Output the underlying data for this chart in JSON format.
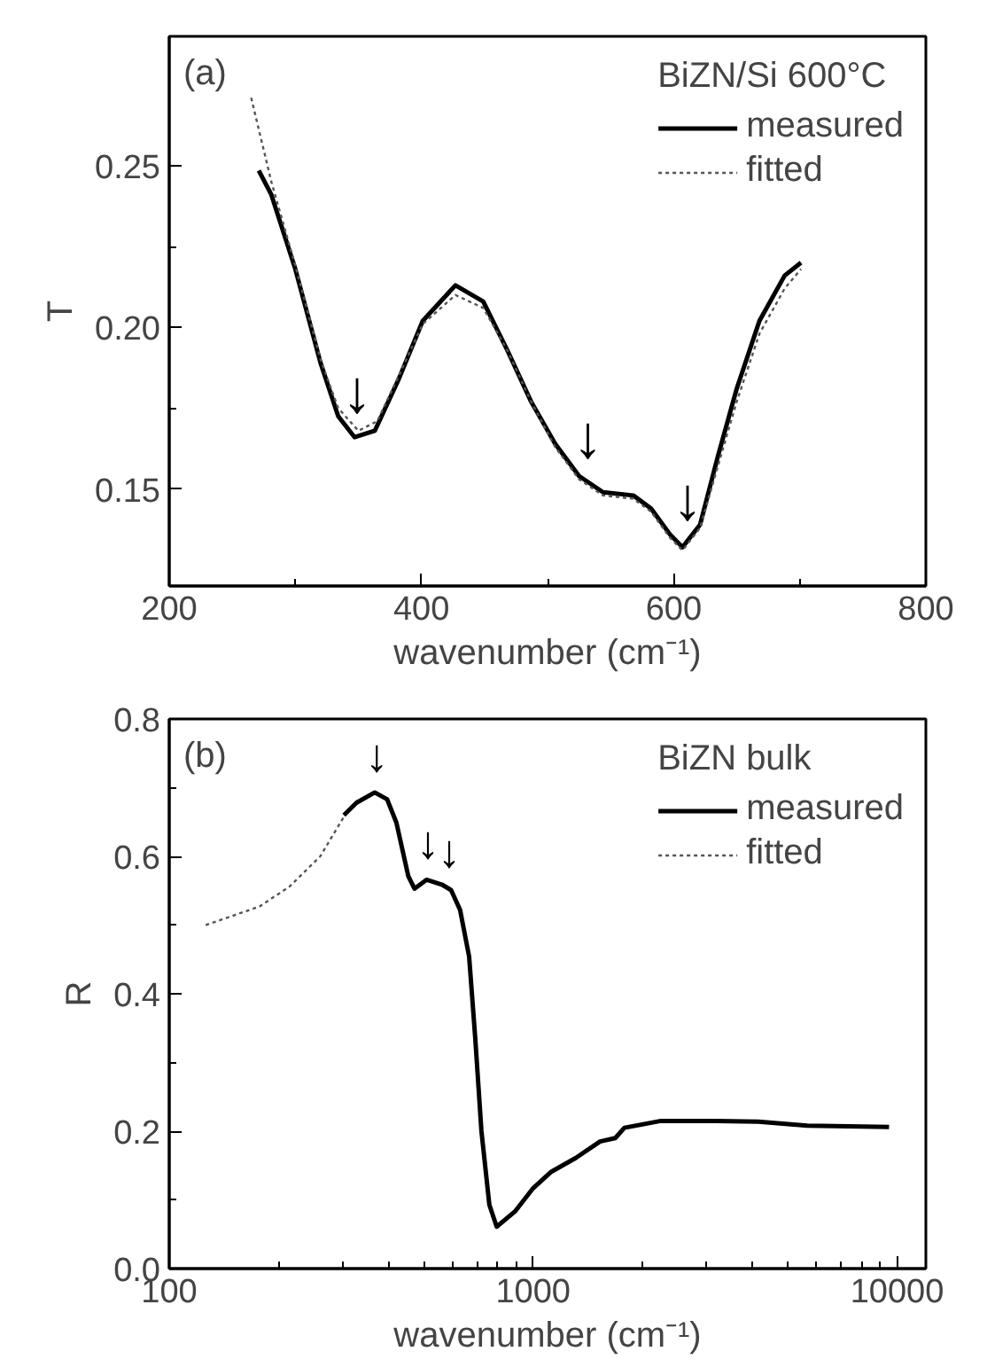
{
  "chart_data": [
    {
      "type": "line",
      "xlabel": "wavenumber (cm⁻¹)",
      "ylabel": "T",
      "legend_title": "BiZN/Si 600°C",
      "legend": "top right",
      "grid": false,
      "xlim": [
        200,
        800
      ],
      "ylim": [
        0.12,
        0.29
      ],
      "xticks": [
        200,
        400,
        600,
        800
      ],
      "yticks": [
        {
          "value": 0.15,
          "label": "0.15"
        },
        {
          "value": 0.2,
          "label": "0.20"
        },
        {
          "value": 0.25,
          "label": "0.25"
        }
      ],
      "series": [
        {
          "name": "measured",
          "color": "#000000",
          "line_style": "solid",
          "x": [
            271,
            281,
            300,
            320,
            334,
            347,
            363,
            382,
            401,
            427,
            449,
            468,
            487,
            506,
            525,
            544,
            568,
            582,
            597,
            607,
            621,
            635,
            650,
            668,
            688,
            701
          ],
          "values": [
            0.2485,
            0.241,
            0.218,
            0.189,
            0.1725,
            0.166,
            0.168,
            0.184,
            0.202,
            0.213,
            0.208,
            0.193,
            0.177,
            0.164,
            0.154,
            0.149,
            0.148,
            0.144,
            0.136,
            0.132,
            0.139,
            0.16,
            0.181,
            0.202,
            0.216,
            0.22
          ]
        },
        {
          "name": "fitted",
          "color": "#555555",
          "line_style": "dotted",
          "x": [
            265,
            281,
            300,
            320,
            334,
            350,
            365,
            382,
            401,
            427,
            449,
            468,
            487,
            506,
            525,
            544,
            568,
            582,
            597,
            607,
            621,
            635,
            650,
            668,
            688,
            701
          ],
          "values": [
            0.271,
            0.245,
            0.219,
            0.19,
            0.175,
            0.168,
            0.171,
            0.185,
            0.201,
            0.21,
            0.206,
            0.193,
            0.177,
            0.163,
            0.153,
            0.148,
            0.147,
            0.143,
            0.135,
            0.131,
            0.138,
            0.157,
            0.177,
            0.198,
            0.212,
            0.218
          ]
        }
      ],
      "annotations": [
        "(a)",
        {
          "text": "↓",
          "x": 349,
          "y": 0.166
        },
        {
          "text": "↓",
          "x": 532,
          "y": 0.152
        },
        {
          "text": "↓",
          "x": 611,
          "y": 0.133
        }
      ]
    },
    {
      "type": "line",
      "xlabel": "wavenumber (cm⁻¹)",
      "ylabel": "R",
      "legend_title": "BiZN bulk",
      "legend": "top right",
      "grid": false,
      "log": "x",
      "xlim": [
        100,
        12000
      ],
      "ylim": [
        0,
        0.8
      ],
      "xticks": [
        100,
        1000,
        10000
      ],
      "yticks": [
        {
          "value": 0,
          "label": "0.0"
        },
        {
          "value": 0.2,
          "label": "0.2"
        },
        {
          "value": 0.4,
          "label": "0.4"
        },
        {
          "value": 0.6,
          "label": "0.6"
        },
        {
          "value": 0.8,
          "label": "0.8"
        }
      ],
      "series": [
        {
          "name": "measured",
          "color": "#000000",
          "line_style": "solid",
          "x": [
            302,
            327,
            367,
            397,
            421,
            454,
            472,
            510,
            561,
            595,
            630,
            667,
            693,
            721,
            758,
            794,
            891,
            1000,
            1122,
            1309,
            1527,
            1682,
            1782,
            2245,
            3177,
            4159,
            5662,
            9506
          ],
          "values": [
            0.66,
            0.678,
            0.693,
            0.683,
            0.649,
            0.571,
            0.553,
            0.566,
            0.559,
            0.551,
            0.522,
            0.454,
            0.337,
            0.2,
            0.093,
            0.061,
            0.083,
            0.117,
            0.141,
            0.161,
            0.185,
            0.19,
            0.205,
            0.215,
            0.215,
            0.214,
            0.208,
            0.206
          ]
        },
        {
          "name": "fitted",
          "color": "#555555",
          "line_style": "dotted",
          "x": [
            126,
            177,
            214,
            260,
            303
          ],
          "values": [
            0.5,
            0.527,
            0.556,
            0.6,
            0.659
          ]
        }
      ],
      "annotations": [
        "(b)",
        {
          "text": "↓",
          "x": 372,
          "y": 0.693
        },
        {
          "text": "↓",
          "x": 514,
          "y": 0.566
        },
        {
          "text": "↓",
          "x": 588,
          "y": 0.553
        }
      ]
    }
  ]
}
